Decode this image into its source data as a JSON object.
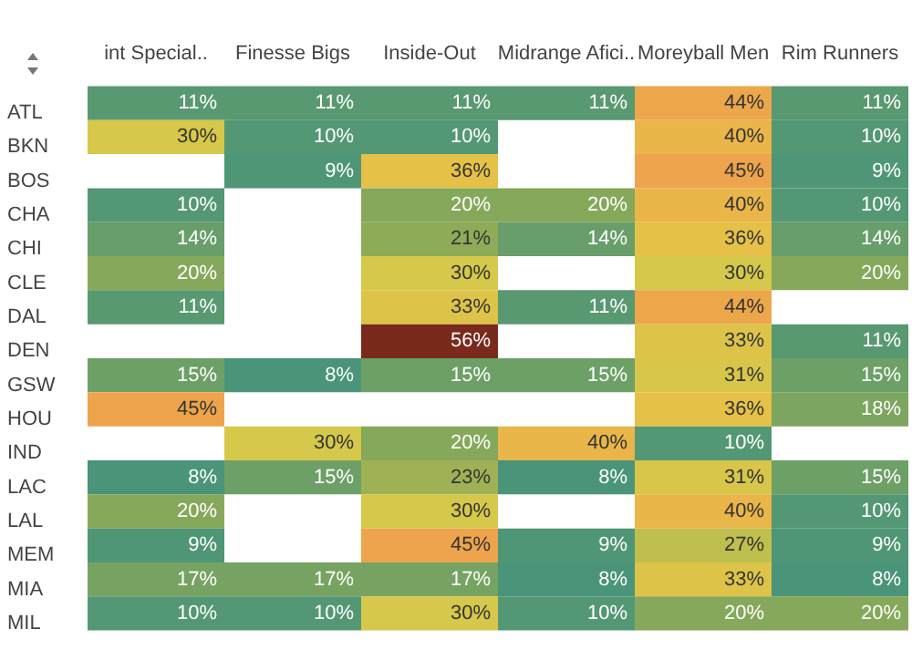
{
  "chart_data": {
    "type": "heatmap",
    "categories": [
      "int Special..",
      "Finesse Bigs",
      "Inside-Out",
      "Midrange Afici..",
      "Moreyball Men",
      "Rim Runners"
    ],
    "y_categories": [
      "ATL",
      "BKN",
      "BOS",
      "CHA",
      "CHI",
      "CLE",
      "DAL",
      "DEN",
      "GSW",
      "HOU",
      "IND",
      "LAC",
      "LAL",
      "MEM",
      "MIA",
      "MIL"
    ],
    "cells": [
      [
        11,
        11,
        11,
        11,
        44,
        11
      ],
      [
        30,
        10,
        10,
        null,
        40,
        10
      ],
      [
        null,
        9,
        36,
        null,
        45,
        9
      ],
      [
        10,
        null,
        20,
        20,
        40,
        10
      ],
      [
        14,
        null,
        21,
        14,
        36,
        14
      ],
      [
        20,
        null,
        30,
        null,
        30,
        20
      ],
      [
        11,
        null,
        33,
        11,
        44,
        null
      ],
      [
        null,
        null,
        56,
        null,
        33,
        11
      ],
      [
        15,
        8,
        15,
        15,
        31,
        15
      ],
      [
        45,
        null,
        null,
        null,
        36,
        18
      ],
      [
        null,
        30,
        20,
        40,
        10,
        null
      ],
      [
        8,
        15,
        23,
        8,
        31,
        15
      ],
      [
        20,
        null,
        30,
        null,
        40,
        10
      ],
      [
        9,
        null,
        45,
        9,
        27,
        9
      ],
      [
        17,
        17,
        17,
        8,
        33,
        8
      ],
      [
        10,
        10,
        30,
        10,
        20,
        20
      ]
    ],
    "cell_labels": [
      [
        "11%",
        "11%",
        "11%",
        "11%",
        "44%",
        "11%"
      ],
      [
        "30%",
        "10%",
        "10%",
        null,
        "40%",
        "10%"
      ],
      [
        null,
        "9%",
        "36%",
        null,
        "45%",
        "9%"
      ],
      [
        "10%",
        null,
        "20%",
        "20%",
        "40%",
        "10%"
      ],
      [
        "14%",
        null,
        "21%",
        "14%",
        "36%",
        "14%"
      ],
      [
        "20%",
        null,
        "30%",
        null,
        "30%",
        "20%"
      ],
      [
        "11%",
        null,
        "33%",
        "11%",
        "44%",
        null
      ],
      [
        null,
        null,
        "56%",
        null,
        "33%",
        "11%"
      ],
      [
        "15%",
        "8%",
        "15%",
        "15%",
        "31%",
        "15%"
      ],
      [
        "45%",
        null,
        null,
        null,
        "36%",
        "18%"
      ],
      [
        null,
        "30%",
        "20%",
        "40%",
        "10%",
        null
      ],
      [
        "8%",
        "15%",
        "23%",
        "8%",
        "31%",
        "15%"
      ],
      [
        "20%",
        null,
        "30%",
        null,
        "40%",
        "10%"
      ],
      [
        "9%",
        null,
        "45%",
        "9%",
        "27%",
        "9%"
      ],
      [
        "17%",
        "17%",
        "17%",
        "8%",
        "33%",
        "8%"
      ],
      [
        "10%",
        "10%",
        "30%",
        "10%",
        "20%",
        "20%"
      ]
    ]
  }
}
